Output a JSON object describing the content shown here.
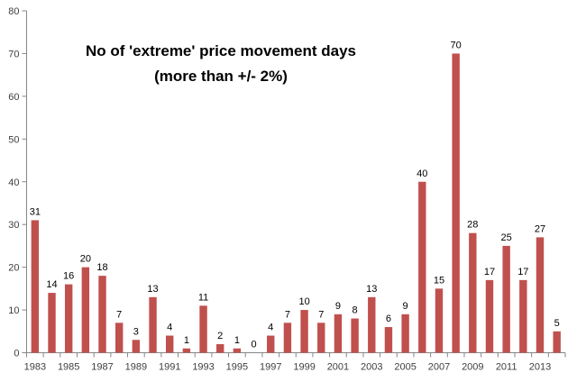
{
  "chart_data": {
    "type": "bar",
    "title_lines": [
      "No of 'extreme' price movement days",
      "(more than +/-  2%)"
    ],
    "xlabel": "",
    "ylabel": "",
    "categories": [
      "1983",
      "1984",
      "1985",
      "1986",
      "1987",
      "1988",
      "1989",
      "1990",
      "1991",
      "1992",
      "1993",
      "1994",
      "1995",
      "1996",
      "1997",
      "1998",
      "1999",
      "2000",
      "2001",
      "2002",
      "2003",
      "2004",
      "2005",
      "2006",
      "2007",
      "2008",
      "2009",
      "2010",
      "2011",
      "2012",
      "2013",
      "2014"
    ],
    "x_tick_labels": [
      "1983",
      "",
      "1985",
      "",
      "1987",
      "",
      "1989",
      "",
      "1991",
      "",
      "1993",
      "",
      "1995",
      "",
      "1997",
      "",
      "1999",
      "",
      "2001",
      "",
      "2003",
      "",
      "2005",
      "",
      "2007",
      "",
      "2009",
      "",
      "2011",
      "",
      "2013",
      ""
    ],
    "values": [
      31,
      14,
      16,
      20,
      18,
      7,
      3,
      13,
      4,
      1,
      11,
      2,
      1,
      0,
      4,
      7,
      10,
      7,
      9,
      8,
      13,
      6,
      9,
      40,
      15,
      70,
      28,
      17,
      25,
      17,
      27,
      5
    ],
    "data_labels": [
      "31",
      "14",
      "16",
      "20",
      "18",
      "7",
      "3",
      "13",
      "4",
      "1",
      "11",
      "2",
      "1",
      "0",
      "4",
      "7",
      "10",
      "7",
      "9",
      "8",
      "13",
      "6",
      "9",
      "40",
      "15",
      "70",
      "28",
      "17",
      "25",
      "17",
      "27",
      "5"
    ],
    "ylim": [
      0,
      80
    ],
    "y_ticks": [
      0,
      10,
      20,
      30,
      40,
      50,
      60,
      70,
      80
    ],
    "y_tick_labels": [
      "0",
      "10",
      "20",
      "30",
      "40",
      "50",
      "60",
      "70",
      "80"
    ],
    "grid": false,
    "legend": "none",
    "colors": {
      "bar": "#C0504D",
      "axis": "#868686",
      "text": "#404040"
    }
  }
}
